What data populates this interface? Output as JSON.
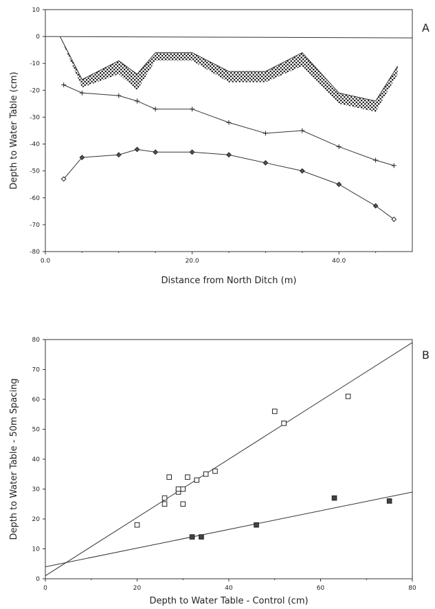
{
  "chart_data": [
    {
      "panel_label": "A",
      "type": "line",
      "xlabel": "Distance from North Ditch (m)",
      "ylabel": "Depth to Water Table (cm)",
      "xlim": [
        0,
        50
      ],
      "ylim": [
        -80,
        10
      ],
      "xticks": [
        "0.0",
        "20.0",
        "40.0"
      ],
      "xtick_values": [
        0,
        20,
        40
      ],
      "yticks": [
        "10",
        "0",
        "-10",
        "-20",
        "-30",
        "-40",
        "-50",
        "-60",
        "-70",
        "-80"
      ],
      "ytick_values": [
        10,
        0,
        -10,
        -20,
        -30,
        -40,
        -50,
        -60,
        -70,
        -80
      ],
      "zero_line": true,
      "band": {
        "fill": "stippled",
        "x": [
          2,
          5,
          10,
          12.5,
          15,
          20,
          25,
          30,
          35,
          40,
          45,
          48
        ],
        "upper": [
          0,
          -16,
          -9,
          -14,
          -6,
          -6,
          -13,
          -13,
          -6,
          -21,
          -24,
          -11
        ],
        "lower": [
          0,
          -19,
          -14,
          -20,
          -9,
          -9,
          -17,
          -17,
          -11,
          -25,
          -28,
          -14
        ]
      },
      "series": [
        {
          "marker": "plus",
          "x": [
            2.5,
            5,
            10,
            12.5,
            15,
            20,
            25,
            30,
            35,
            40,
            45,
            47.5
          ],
          "y": [
            -18,
            -21,
            -22,
            -24,
            -27,
            -27,
            -32,
            -36,
            -35,
            -41,
            -46,
            -48
          ]
        },
        {
          "marker": "diamond",
          "x": [
            2.5,
            5,
            10,
            12.5,
            15,
            20,
            25,
            30,
            35,
            40,
            45,
            47.5
          ],
          "y": [
            -53,
            -45,
            -44,
            -42,
            -43,
            -43,
            -44,
            -47,
            -50,
            -55,
            -63,
            -68
          ]
        }
      ]
    },
    {
      "panel_label": "B",
      "type": "scatter",
      "xlabel": "Depth to Water Table - Control (cm)",
      "ylabel": "Depth to Water Table - 50m Spacing",
      "xlim": [
        0,
        80
      ],
      "ylim": [
        0,
        80
      ],
      "xticks": [
        "0",
        "20",
        "40",
        "60",
        "80"
      ],
      "xtick_values": [
        0,
        20,
        40,
        60,
        80
      ],
      "yticks": [
        "0",
        "10",
        "20",
        "30",
        "40",
        "50",
        "60",
        "70",
        "80"
      ],
      "ytick_values": [
        0,
        10,
        20,
        30,
        40,
        50,
        60,
        70,
        80
      ],
      "series": [
        {
          "marker": "open-square",
          "x": [
            20,
            26,
            26,
            27,
            29,
            29,
            30,
            30,
            31,
            33,
            35,
            37,
            50,
            52,
            66
          ],
          "y": [
            18,
            25,
            27,
            34,
            29,
            30,
            25,
            30,
            34,
            33,
            35,
            36,
            56,
            52,
            61
          ],
          "fit": {
            "x": [
              0,
              80
            ],
            "y": [
              1,
              79
            ]
          }
        },
        {
          "marker": "filled-square",
          "x": [
            32,
            34,
            46,
            63,
            75
          ],
          "y": [
            14,
            14,
            18,
            27,
            26
          ],
          "fit": {
            "x": [
              0,
              80
            ],
            "y": [
              4,
              29
            ]
          }
        }
      ]
    }
  ]
}
